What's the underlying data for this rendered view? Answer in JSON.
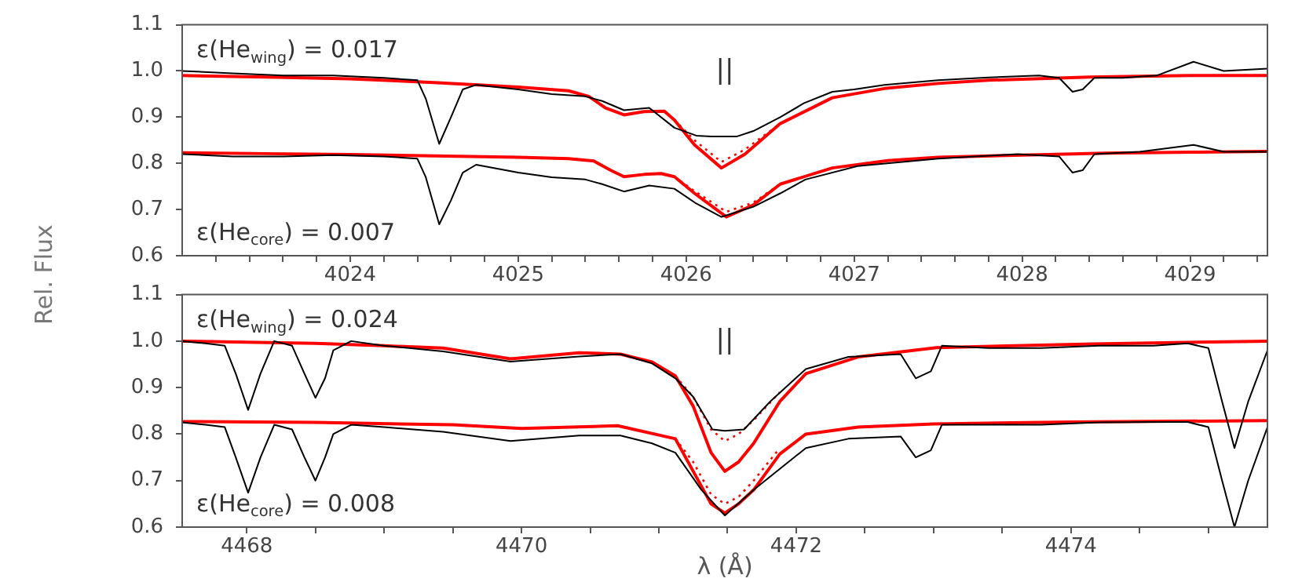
{
  "chart_data": [
    {
      "type": "line",
      "ylabel": "Rel. Flux",
      "marker": "none",
      "grid": false,
      "xlim": [
        4023.0,
        4029.46
      ],
      "ylim": [
        0.6,
        1.1
      ],
      "xticks": [
        {
          "value": 4023.2,
          "label": null
        },
        {
          "value": 4023.4,
          "label": null
        },
        {
          "value": 4023.6,
          "label": null
        },
        {
          "value": 4023.8,
          "label": null
        },
        4024,
        {
          "value": 4024.2,
          "label": null
        },
        {
          "value": 4024.4,
          "label": null
        },
        {
          "value": 4024.6,
          "label": null
        },
        {
          "value": 4024.8,
          "label": null
        },
        4025,
        {
          "value": 4025.2,
          "label": null
        },
        {
          "value": 4025.4,
          "label": null
        },
        {
          "value": 4025.6,
          "label": null
        },
        {
          "value": 4025.8,
          "label": null
        },
        4026,
        {
          "value": 4026.2,
          "label": null
        },
        {
          "value": 4026.4,
          "label": null
        },
        {
          "value": 4026.6,
          "label": null
        },
        {
          "value": 4026.8,
          "label": null
        },
        4027,
        {
          "value": 4027.2,
          "label": null
        },
        {
          "value": 4027.4,
          "label": null
        },
        {
          "value": 4027.6,
          "label": null
        },
        {
          "value": 4027.8,
          "label": null
        },
        4028,
        {
          "value": 4028.2,
          "label": null
        },
        {
          "value": 4028.4,
          "label": null
        },
        {
          "value": 4028.6,
          "label": null
        },
        {
          "value": 4028.8,
          "label": null
        },
        4029,
        {
          "value": 4029.2,
          "label": null
        },
        {
          "value": 4029.4,
          "label": null
        }
      ],
      "yticks": [
        0.6,
        0.7,
        0.8,
        0.9,
        {
          "value": 1,
          "label": "1.0"
        },
        1.1
      ],
      "series": [
        {
          "color": "#000000",
          "line_style": "solid",
          "x": [
            4023.0,
            4023.3,
            4023.6,
            4023.9,
            4024.2,
            4024.4,
            4024.45,
            4024.53,
            4024.6,
            4024.67,
            4024.75,
            4025.0,
            4025.2,
            4025.4,
            4025.5,
            4025.63,
            4025.78,
            4025.93,
            4026.06,
            4026.15,
            4026.3,
            4026.4,
            4026.56,
            4026.7,
            4026.87,
            4027.0,
            4027.18,
            4027.5,
            4027.8,
            4028.1,
            4028.22,
            4028.3,
            4028.36,
            4028.43,
            4028.6,
            4028.8,
            4029.02,
            4029.2,
            4029.46
          ],
          "values": [
            1.0,
            0.995,
            0.99,
            0.99,
            0.985,
            0.98,
            0.94,
            0.842,
            0.9,
            0.96,
            0.97,
            0.96,
            0.95,
            0.945,
            0.935,
            0.915,
            0.92,
            0.877,
            0.86,
            0.858,
            0.858,
            0.87,
            0.9,
            0.93,
            0.955,
            0.96,
            0.97,
            0.98,
            0.986,
            0.99,
            0.985,
            0.955,
            0.96,
            0.985,
            0.985,
            0.99,
            1.02,
            1.0,
            1.005
          ]
        },
        {
          "color": "#ff0000",
          "line_style": "solid",
          "x": [
            4023.0,
            4023.5,
            4024.0,
            4024.5,
            4025.0,
            4025.3,
            4025.42,
            4025.52,
            4025.63,
            4025.75,
            4025.87,
            4025.93,
            4026.05,
            4026.21,
            4026.35,
            4026.56,
            4026.87,
            4027.18,
            4027.5,
            4027.8,
            4028.4,
            4029.0,
            4029.46
          ],
          "values": [
            0.99,
            0.987,
            0.983,
            0.975,
            0.965,
            0.957,
            0.945,
            0.92,
            0.905,
            0.912,
            0.913,
            0.894,
            0.84,
            0.79,
            0.82,
            0.886,
            0.942,
            0.962,
            0.973,
            0.98,
            0.987,
            0.99,
            0.99
          ]
        },
        {
          "color": "#ff0000",
          "line_style": "dotted",
          "x": [
            4025.93,
            4026.05,
            4026.21,
            4026.35,
            4026.56
          ],
          "values": [
            0.894,
            0.85,
            0.803,
            0.83,
            0.886
          ]
        },
        {
          "color": "#000000",
          "line_style": "solid",
          "x": [
            4023.0,
            4023.3,
            4023.6,
            4023.9,
            4024.2,
            4024.4,
            4024.45,
            4024.53,
            4024.6,
            4024.67,
            4024.75,
            4025.0,
            4025.2,
            4025.4,
            4025.5,
            4025.63,
            4025.78,
            4025.93,
            4026.06,
            4026.21,
            4026.4,
            4026.56,
            4026.71,
            4027.02,
            4027.5,
            4027.97,
            4028.22,
            4028.3,
            4028.36,
            4028.43,
            4028.7,
            4029.02,
            4029.2,
            4029.46
          ],
          "values": [
            0.82,
            0.815,
            0.815,
            0.818,
            0.815,
            0.81,
            0.77,
            0.668,
            0.72,
            0.78,
            0.797,
            0.78,
            0.77,
            0.765,
            0.755,
            0.739,
            0.752,
            0.745,
            0.713,
            0.684,
            0.706,
            0.735,
            0.765,
            0.794,
            0.81,
            0.82,
            0.815,
            0.78,
            0.785,
            0.82,
            0.825,
            0.84,
            0.825,
            0.825
          ]
        },
        {
          "color": "#ff0000",
          "line_style": "solid",
          "x": [
            4023.0,
            4023.5,
            4024.0,
            4024.5,
            4025.0,
            4025.3,
            4025.45,
            4025.55,
            4025.63,
            4025.75,
            4025.85,
            4025.93,
            4026.05,
            4026.24,
            4026.4,
            4026.56,
            4026.87,
            4027.2,
            4027.5,
            4028.0,
            4028.5,
            4029.0,
            4029.46
          ],
          "values": [
            0.823,
            0.821,
            0.819,
            0.816,
            0.813,
            0.81,
            0.805,
            0.785,
            0.771,
            0.776,
            0.778,
            0.771,
            0.735,
            0.684,
            0.71,
            0.755,
            0.79,
            0.806,
            0.813,
            0.818,
            0.822,
            0.824,
            0.826
          ]
        },
        {
          "color": "#ff0000",
          "line_style": "dotted",
          "x": [
            4025.93,
            4026.05,
            4026.24,
            4026.4,
            4026.56
          ],
          "values": [
            0.771,
            0.74,
            0.695,
            0.715,
            0.755
          ]
        }
      ],
      "annotations": [
        "ε(He$_{wing}$) = 0.017",
        "ε(He$_{core}$) = 0.007",
        "||"
      ]
    },
    {
      "type": "line",
      "xlabel": "λ (Å)",
      "marker": "none",
      "grid": false,
      "xlim": [
        4467.53,
        4475.43
      ],
      "ylim": [
        0.6,
        1.1
      ],
      "xticks": [
        4468,
        {
          "value": 4468.5,
          "label": null
        },
        {
          "value": 4469,
          "label": null
        },
        {
          "value": 4469.5,
          "label": null
        },
        4470,
        {
          "value": 4470.5,
          "label": null
        },
        {
          "value": 4471,
          "label": null
        },
        {
          "value": 4471.5,
          "label": null
        },
        4472,
        {
          "value": 4472.5,
          "label": null
        },
        {
          "value": 4473,
          "label": null
        },
        {
          "value": 4473.5,
          "label": null
        },
        4474,
        {
          "value": 4474.5,
          "label": null
        },
        {
          "value": 4475,
          "label": null
        }
      ],
      "yticks": [
        0.6,
        0.7,
        0.8,
        0.9,
        {
          "value": 1,
          "label": "1.0"
        },
        1.1
      ],
      "series": [
        {
          "color": "#000000",
          "line_style": "solid",
          "x": [
            4467.53,
            4467.7,
            4467.84,
            4467.92,
            4468.01,
            4468.1,
            4468.2,
            4468.33,
            4468.42,
            4468.5,
            4468.57,
            4468.63,
            4468.76,
            4469.0,
            4469.43,
            4469.92,
            4470.42,
            4470.72,
            4470.95,
            4471.12,
            4471.25,
            4471.39,
            4471.48,
            4471.62,
            4471.81,
            4472.07,
            4472.38,
            4472.76,
            4472.87,
            4472.98,
            4473.06,
            4473.4,
            4473.78,
            4474.2,
            4474.6,
            4474.85,
            4475.0,
            4475.1,
            4475.19,
            4475.29,
            4475.43
          ],
          "values": [
            1.0,
            0.995,
            0.99,
            0.93,
            0.852,
            0.93,
            1.0,
            0.99,
            0.93,
            0.878,
            0.92,
            0.98,
            1.0,
            0.99,
            0.978,
            0.956,
            0.967,
            0.972,
            0.952,
            0.92,
            0.88,
            0.81,
            0.807,
            0.81,
            0.87,
            0.94,
            0.966,
            0.972,
            0.92,
            0.935,
            0.99,
            0.985,
            0.985,
            0.99,
            0.99,
            0.995,
            0.985,
            0.87,
            0.77,
            0.87,
            0.98
          ]
        },
        {
          "color": "#ff0000",
          "line_style": "solid",
          "x": [
            4467.53,
            4468.5,
            4469.0,
            4469.43,
            4469.92,
            4470.42,
            4470.72,
            4470.95,
            4471.12,
            4471.25,
            4471.38,
            4471.48,
            4471.58,
            4471.69,
            4471.88,
            4472.07,
            4472.45,
            4473.02,
            4474.16,
            4475.43
          ],
          "values": [
            1.0,
            0.995,
            0.99,
            0.985,
            0.962,
            0.975,
            0.972,
            0.955,
            0.925,
            0.86,
            0.76,
            0.72,
            0.74,
            0.78,
            0.87,
            0.93,
            0.966,
            0.986,
            0.994,
            1.0
          ]
        },
        {
          "color": "#ff0000",
          "line_style": "dotted",
          "x": [
            4471.12,
            4471.25,
            4471.38,
            4471.48,
            4471.58,
            4471.69,
            4471.88
          ],
          "values": [
            0.925,
            0.88,
            0.81,
            0.785,
            0.8,
            0.83,
            0.89
          ]
        },
        {
          "color": "#000000",
          "line_style": "solid",
          "x": [
            4467.53,
            4467.7,
            4467.84,
            4467.92,
            4468.01,
            4468.1,
            4468.2,
            4468.33,
            4468.42,
            4468.5,
            4468.57,
            4468.63,
            4468.76,
            4469.0,
            4469.43,
            4469.92,
            4470.42,
            4470.72,
            4470.95,
            4471.12,
            4471.31,
            4471.48,
            4471.69,
            4472.07,
            4472.38,
            4472.76,
            4472.87,
            4472.98,
            4473.06,
            4473.4,
            4473.78,
            4474.2,
            4474.6,
            4474.85,
            4475.0,
            4475.1,
            4475.19,
            4475.29,
            4475.43
          ],
          "values": [
            0.825,
            0.82,
            0.815,
            0.75,
            0.674,
            0.75,
            0.82,
            0.81,
            0.75,
            0.7,
            0.75,
            0.8,
            0.82,
            0.815,
            0.805,
            0.785,
            0.797,
            0.797,
            0.78,
            0.76,
            0.68,
            0.625,
            0.68,
            0.77,
            0.79,
            0.795,
            0.75,
            0.765,
            0.82,
            0.82,
            0.82,
            0.825,
            0.826,
            0.826,
            0.815,
            0.7,
            0.6,
            0.7,
            0.815
          ]
        },
        {
          "color": "#ff0000",
          "line_style": "solid",
          "x": [
            4467.53,
            4468.5,
            4469.5,
            4470.0,
            4470.7,
            4471.12,
            4471.25,
            4471.38,
            4471.48,
            4471.58,
            4471.69,
            4471.88,
            4472.07,
            4472.45,
            4473.0,
            4474.0,
            4475.43
          ],
          "values": [
            0.827,
            0.825,
            0.82,
            0.812,
            0.818,
            0.79,
            0.72,
            0.65,
            0.63,
            0.65,
            0.68,
            0.757,
            0.8,
            0.815,
            0.822,
            0.826,
            0.829
          ]
        },
        {
          "color": "#ff0000",
          "line_style": "dotted",
          "x": [
            4471.12,
            4471.25,
            4471.38,
            4471.48,
            4471.58,
            4471.69,
            4471.88
          ],
          "values": [
            0.79,
            0.74,
            0.67,
            0.65,
            0.665,
            0.7,
            0.77
          ]
        }
      ],
      "annotations": [
        "ε(He$_{wing}$) = 0.024",
        "ε(He$_{core}$) = 0.008",
        "||"
      ]
    }
  ]
}
